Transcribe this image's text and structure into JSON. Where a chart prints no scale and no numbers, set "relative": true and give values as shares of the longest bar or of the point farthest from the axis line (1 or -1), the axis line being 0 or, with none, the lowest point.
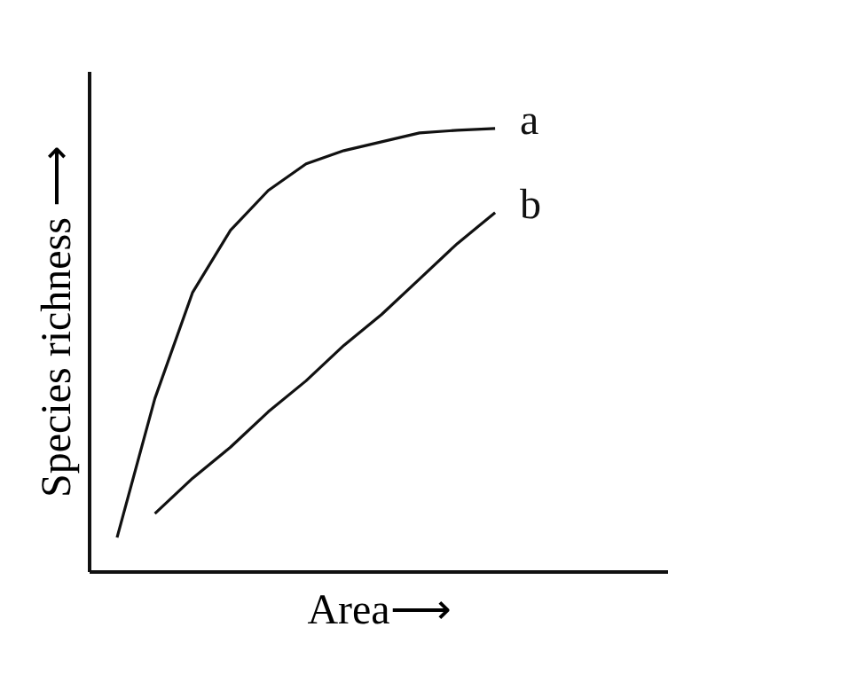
{
  "chart_data": {
    "type": "line",
    "relative": true,
    "xlabel": "Area⟶",
    "ylabel": "Species richness ⟶",
    "categories": [
      null,
      null,
      null,
      null,
      null,
      null,
      null,
      null,
      null,
      null,
      null,
      null,
      null,
      null,
      null
    ],
    "series": [
      {
        "name": "a",
        "color": "#111111",
        "values": [
          0.076,
          0.39,
          0.63,
          0.77,
          0.86,
          0.92,
          0.95,
          0.97,
          0.99,
          0.996,
          1,
          null,
          null,
          null,
          null
        ]
      },
      {
        "name": "b",
        "color": "#111111",
        "values": [
          null,
          0.13,
          0.21,
          0.28,
          0.36,
          0.43,
          0.51,
          0.58,
          0.66,
          0.74,
          0.81,
          null,
          null,
          null,
          null
        ]
      }
    ],
    "legend": false,
    "grid": false,
    "tick_labels": false,
    "marker": "none",
    "line_style": "solid"
  }
}
